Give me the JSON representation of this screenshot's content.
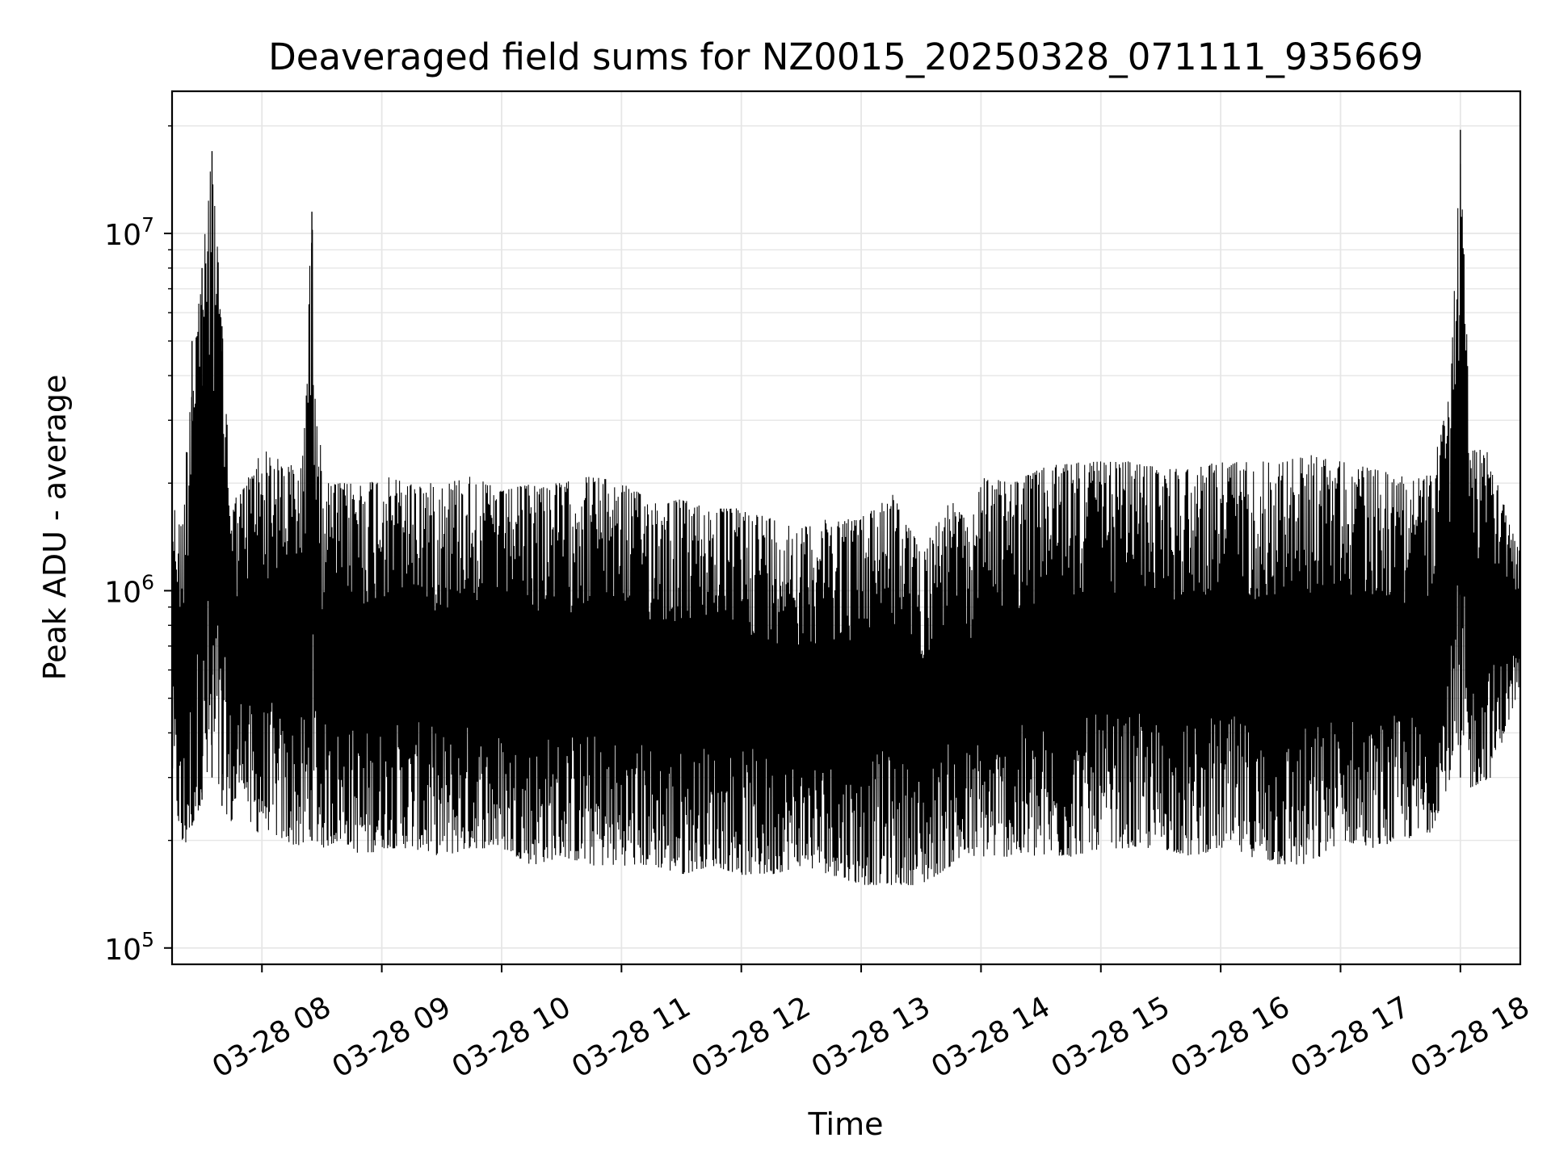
{
  "chart_data": {
    "type": "line",
    "title": "Deaveraged field sums for NZ0015_20250328_071111_935669",
    "xlabel": "Time",
    "ylabel": "Peak ADU - average",
    "yscale": "log",
    "ylim": [
      90000,
      25000000
    ],
    "xlim": [
      "2025-03-28 07:15",
      "2025-03-28 18:30"
    ],
    "grid": true,
    "line_color": "#000000",
    "x_ticks": [
      "03-28 08",
      "03-28 09",
      "03-28 10",
      "03-28 11",
      "03-28 12",
      "03-28 13",
      "03-28 14",
      "03-28 15",
      "03-28 16",
      "03-28 17",
      "03-28 18"
    ],
    "y_ticks": [
      {
        "base": "10",
        "exp": "5",
        "value": 100000
      },
      {
        "base": "10",
        "exp": "6",
        "value": 1000000
      },
      {
        "base": "10",
        "exp": "7",
        "value": 10000000
      }
    ],
    "series": [
      {
        "x": [
          "2025-03-28 07:15",
          "2025-03-28 07:20",
          "2025-03-28 07:25",
          "2025-03-28 07:30",
          "2025-03-28 07:35",
          "2025-03-28 07:40",
          "2025-03-28 07:45",
          "2025-03-28 07:50",
          "2025-03-28 07:55",
          "2025-03-28 08:00",
          "2025-03-28 08:10",
          "2025-03-28 08:20",
          "2025-03-28 08:25",
          "2025-03-28 08:30",
          "2025-03-28 08:40",
          "2025-03-28 08:50",
          "2025-03-28 09:00",
          "2025-03-28 09:15",
          "2025-03-28 09:30",
          "2025-03-28 09:45",
          "2025-03-28 10:00",
          "2025-03-28 10:15",
          "2025-03-28 10:30",
          "2025-03-28 10:45",
          "2025-03-28 11:00",
          "2025-03-28 11:15",
          "2025-03-28 11:30",
          "2025-03-28 11:45",
          "2025-03-28 12:00",
          "2025-03-28 12:15",
          "2025-03-28 12:30",
          "2025-03-28 12:45",
          "2025-03-28 13:00",
          "2025-03-28 13:15",
          "2025-03-28 13:30",
          "2025-03-28 13:45",
          "2025-03-28 13:55",
          "2025-03-28 14:00",
          "2025-03-28 14:15",
          "2025-03-28 14:30",
          "2025-03-28 14:45",
          "2025-03-28 15:00",
          "2025-03-28 15:15",
          "2025-03-28 15:30",
          "2025-03-28 15:45",
          "2025-03-28 16:00",
          "2025-03-28 16:15",
          "2025-03-28 16:30",
          "2025-03-28 16:45",
          "2025-03-28 17:00",
          "2025-03-28 17:15",
          "2025-03-28 17:30",
          "2025-03-28 17:45",
          "2025-03-28 17:55",
          "2025-03-28 18:00",
          "2025-03-28 18:05",
          "2025-03-28 18:15",
          "2025-03-28 18:25",
          "2025-03-28 18:30"
        ],
        "low": [
          300000,
          180000,
          220000,
          260000,
          300000,
          250000,
          220000,
          300000,
          200000,
          220000,
          200000,
          190000,
          200000,
          190000,
          200000,
          180000,
          190000,
          190000,
          180000,
          190000,
          190000,
          170000,
          180000,
          170000,
          170000,
          170000,
          160000,
          170000,
          160000,
          160000,
          170000,
          160000,
          150000,
          150000,
          150000,
          170000,
          180000,
          180000,
          180000,
          180000,
          180000,
          190000,
          190000,
          190000,
          180000,
          190000,
          180000,
          170000,
          170000,
          200000,
          190000,
          200000,
          210000,
          300000,
          300000,
          280000,
          300000,
          450000,
          550000
        ],
        "high": [
          1800000,
          1500000,
          5000000,
          8000000,
          17000000,
          5500000,
          1800000,
          1900000,
          2200000,
          2500000,
          2300000,
          2200000,
          11500000,
          2000000,
          2000000,
          2000000,
          2100000,
          2000000,
          2000000,
          2100000,
          1900000,
          2000000,
          2000000,
          2100000,
          2000000,
          1800000,
          1800000,
          1700000,
          1700000,
          1600000,
          1500000,
          1600000,
          1600000,
          1900000,
          1300000,
          1800000,
          1500000,
          2100000,
          2000000,
          2200000,
          2300000,
          2300000,
          2300000,
          2200000,
          2200000,
          2300000,
          2300000,
          2300000,
          2400000,
          2300000,
          2200000,
          2100000,
          2100000,
          3600000,
          19500000,
          2500000,
          2600000,
          1500000,
          1300000
        ]
      }
    ]
  }
}
